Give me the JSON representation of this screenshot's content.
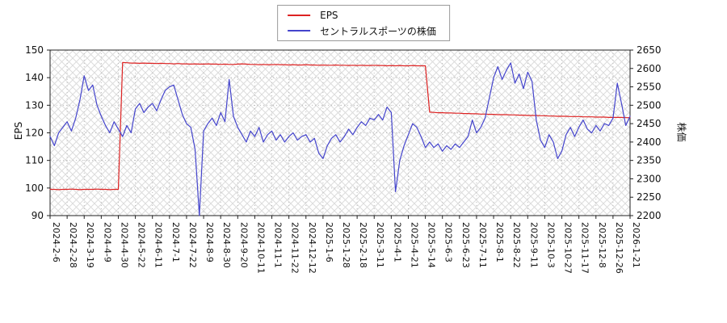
{
  "chart_data": {
    "type": "line",
    "title": "",
    "legend_position": "top-center",
    "grid": true,
    "background_hatch": true,
    "left_axis": {
      "label": "EPS",
      "min": 90,
      "max": 150,
      "tick_step": 10
    },
    "right_axis": {
      "label": "株価",
      "min": 2200,
      "max": 2650,
      "tick_step": 50
    },
    "points_per_tick": 4,
    "x_tick_labels": [
      "2024-2-6",
      "2024-2-28",
      "2024-3-19",
      "2024-4-9",
      "2024-4-30",
      "2024-5-22",
      "2024-6-11",
      "2024-7-1",
      "2024-7-22",
      "2024-8-9",
      "2024-8-30",
      "2024-9-20",
      "2024-10-11",
      "2024-11-1",
      "2024-11-22",
      "2024-12-12",
      "2025-1-6",
      "2025-1-28",
      "2025-2-18",
      "2025-3-11",
      "2025-4-1",
      "2025-4-21",
      "2025-5-14",
      "2025-6-3",
      "2025-6-23",
      "2025-7-11",
      "2025-8-1",
      "2025-8-22",
      "2025-9-11",
      "2025-10-3",
      "2025-10-27",
      "2025-11-17",
      "2025-12-8",
      "2025-12-26",
      "2026-1-21"
    ],
    "series": [
      {
        "name": "EPS",
        "axis": "left",
        "color": "#dd2222",
        "values": [
          99.5,
          99.5,
          99.4,
          99.5,
          99.5,
          99.6,
          99.5,
          99.4,
          99.5,
          99.5,
          99.5,
          99.6,
          99.5,
          99.5,
          99.4,
          99.5,
          99.5,
          145.5,
          145.4,
          145.3,
          145.3,
          145.2,
          145.3,
          145.2,
          145.2,
          145.1,
          145.2,
          145.1,
          145.1,
          145.0,
          145.1,
          145.0,
          145.0,
          144.9,
          145.0,
          144.9,
          144.9,
          145.0,
          144.9,
          144.9,
          144.8,
          144.9,
          144.8,
          144.8,
          144.9,
          145.0,
          144.9,
          144.8,
          144.8,
          144.7,
          144.8,
          144.7,
          144.7,
          144.8,
          144.7,
          144.7,
          144.6,
          144.7,
          144.6,
          144.6,
          144.7,
          144.6,
          144.6,
          144.5,
          144.6,
          144.5,
          144.5,
          144.6,
          144.5,
          144.5,
          144.4,
          144.5,
          144.4,
          144.5,
          144.4,
          144.4,
          144.5,
          144.4,
          144.4,
          144.3,
          144.4,
          144.3,
          144.4,
          144.3,
          144.3,
          144.4,
          144.3,
          144.3,
          144.3,
          127.5,
          127.4,
          127.3,
          127.3,
          127.2,
          127.2,
          127.1,
          127.1,
          127.0,
          127.0,
          126.9,
          126.9,
          126.8,
          126.8,
          126.7,
          126.7,
          126.6,
          126.6,
          126.6,
          126.5,
          126.5,
          126.4,
          126.4,
          126.3,
          126.3,
          126.3,
          126.2,
          126.2,
          126.1,
          126.1,
          126.0,
          126.0,
          126.0,
          125.9,
          125.9,
          125.9,
          125.8,
          125.8,
          125.8,
          125.7,
          125.7,
          125.7,
          125.6,
          125.6,
          125.6,
          125.6,
          125.5,
          125.5
        ]
      },
      {
        "name": "セントラルスポーツの株価",
        "axis": "right",
        "color": "#4444cc",
        "values": [
          2415,
          2390,
          2425,
          2440,
          2455,
          2430,
          2465,
          2515,
          2580,
          2540,
          2555,
          2500,
          2470,
          2445,
          2425,
          2455,
          2435,
          2415,
          2445,
          2425,
          2490,
          2505,
          2480,
          2495,
          2505,
          2485,
          2515,
          2540,
          2550,
          2555,
          2515,
          2475,
          2450,
          2440,
          2380,
          2200,
          2430,
          2450,
          2465,
          2445,
          2480,
          2455,
          2570,
          2470,
          2440,
          2420,
          2400,
          2430,
          2415,
          2440,
          2400,
          2420,
          2430,
          2405,
          2420,
          2400,
          2415,
          2425,
          2405,
          2415,
          2420,
          2400,
          2410,
          2370,
          2355,
          2390,
          2410,
          2420,
          2400,
          2415,
          2435,
          2420,
          2440,
          2455,
          2445,
          2465,
          2460,
          2475,
          2460,
          2495,
          2480,
          2265,
          2350,
          2390,
          2420,
          2450,
          2440,
          2415,
          2385,
          2400,
          2385,
          2395,
          2375,
          2390,
          2380,
          2395,
          2385,
          2400,
          2415,
          2460,
          2425,
          2440,
          2465,
          2520,
          2575,
          2605,
          2570,
          2595,
          2615,
          2560,
          2585,
          2545,
          2590,
          2565,
          2460,
          2405,
          2385,
          2420,
          2400,
          2355,
          2375,
          2420,
          2440,
          2415,
          2440,
          2460,
          2435,
          2425,
          2445,
          2430,
          2450,
          2445,
          2465,
          2560,
          2505,
          2445,
          2470
        ]
      }
    ]
  }
}
